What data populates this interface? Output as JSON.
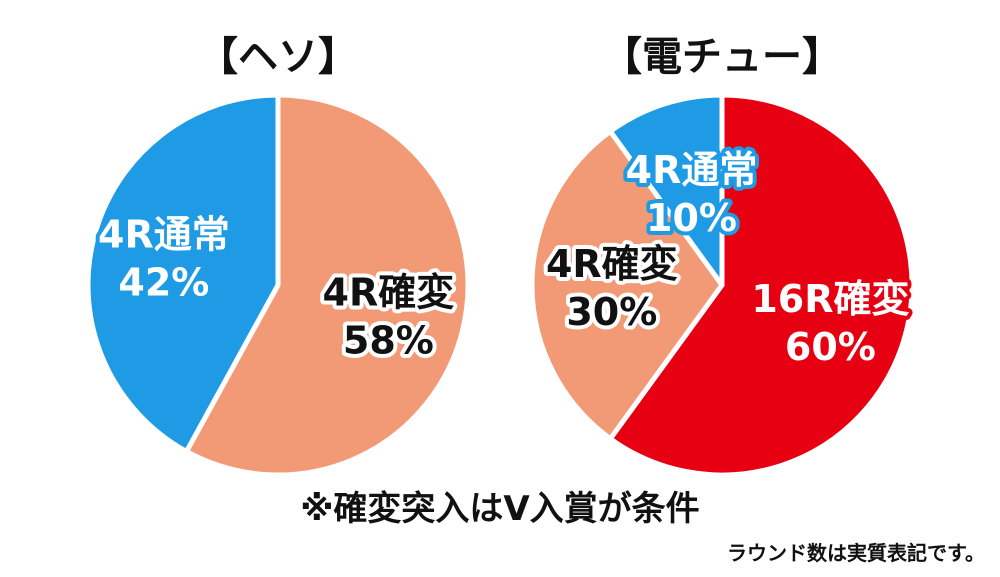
{
  "chart_data": [
    {
      "type": "pie",
      "title": "【ヘソ】",
      "slices": [
        {
          "label": "4R確変",
          "value": 58,
          "value_label": "58%",
          "color": "#f29a76"
        },
        {
          "label": "4R通常",
          "value": 42,
          "value_label": "42%",
          "color": "#1f9be6"
        }
      ]
    },
    {
      "type": "pie",
      "title": "【電チュー】",
      "slices": [
        {
          "label": "16R確変",
          "value": 60,
          "value_label": "60%",
          "color": "#e60012"
        },
        {
          "label": "4R確変",
          "value": 30,
          "value_label": "30%",
          "color": "#f29a76"
        },
        {
          "label": "4R通常",
          "value": 10,
          "value_label": "10%",
          "color": "#1f9be6"
        }
      ]
    }
  ],
  "footer": {
    "note": "※確変突入はV入賞が条件",
    "subnote": "ラウンド数は実質表記です。"
  }
}
